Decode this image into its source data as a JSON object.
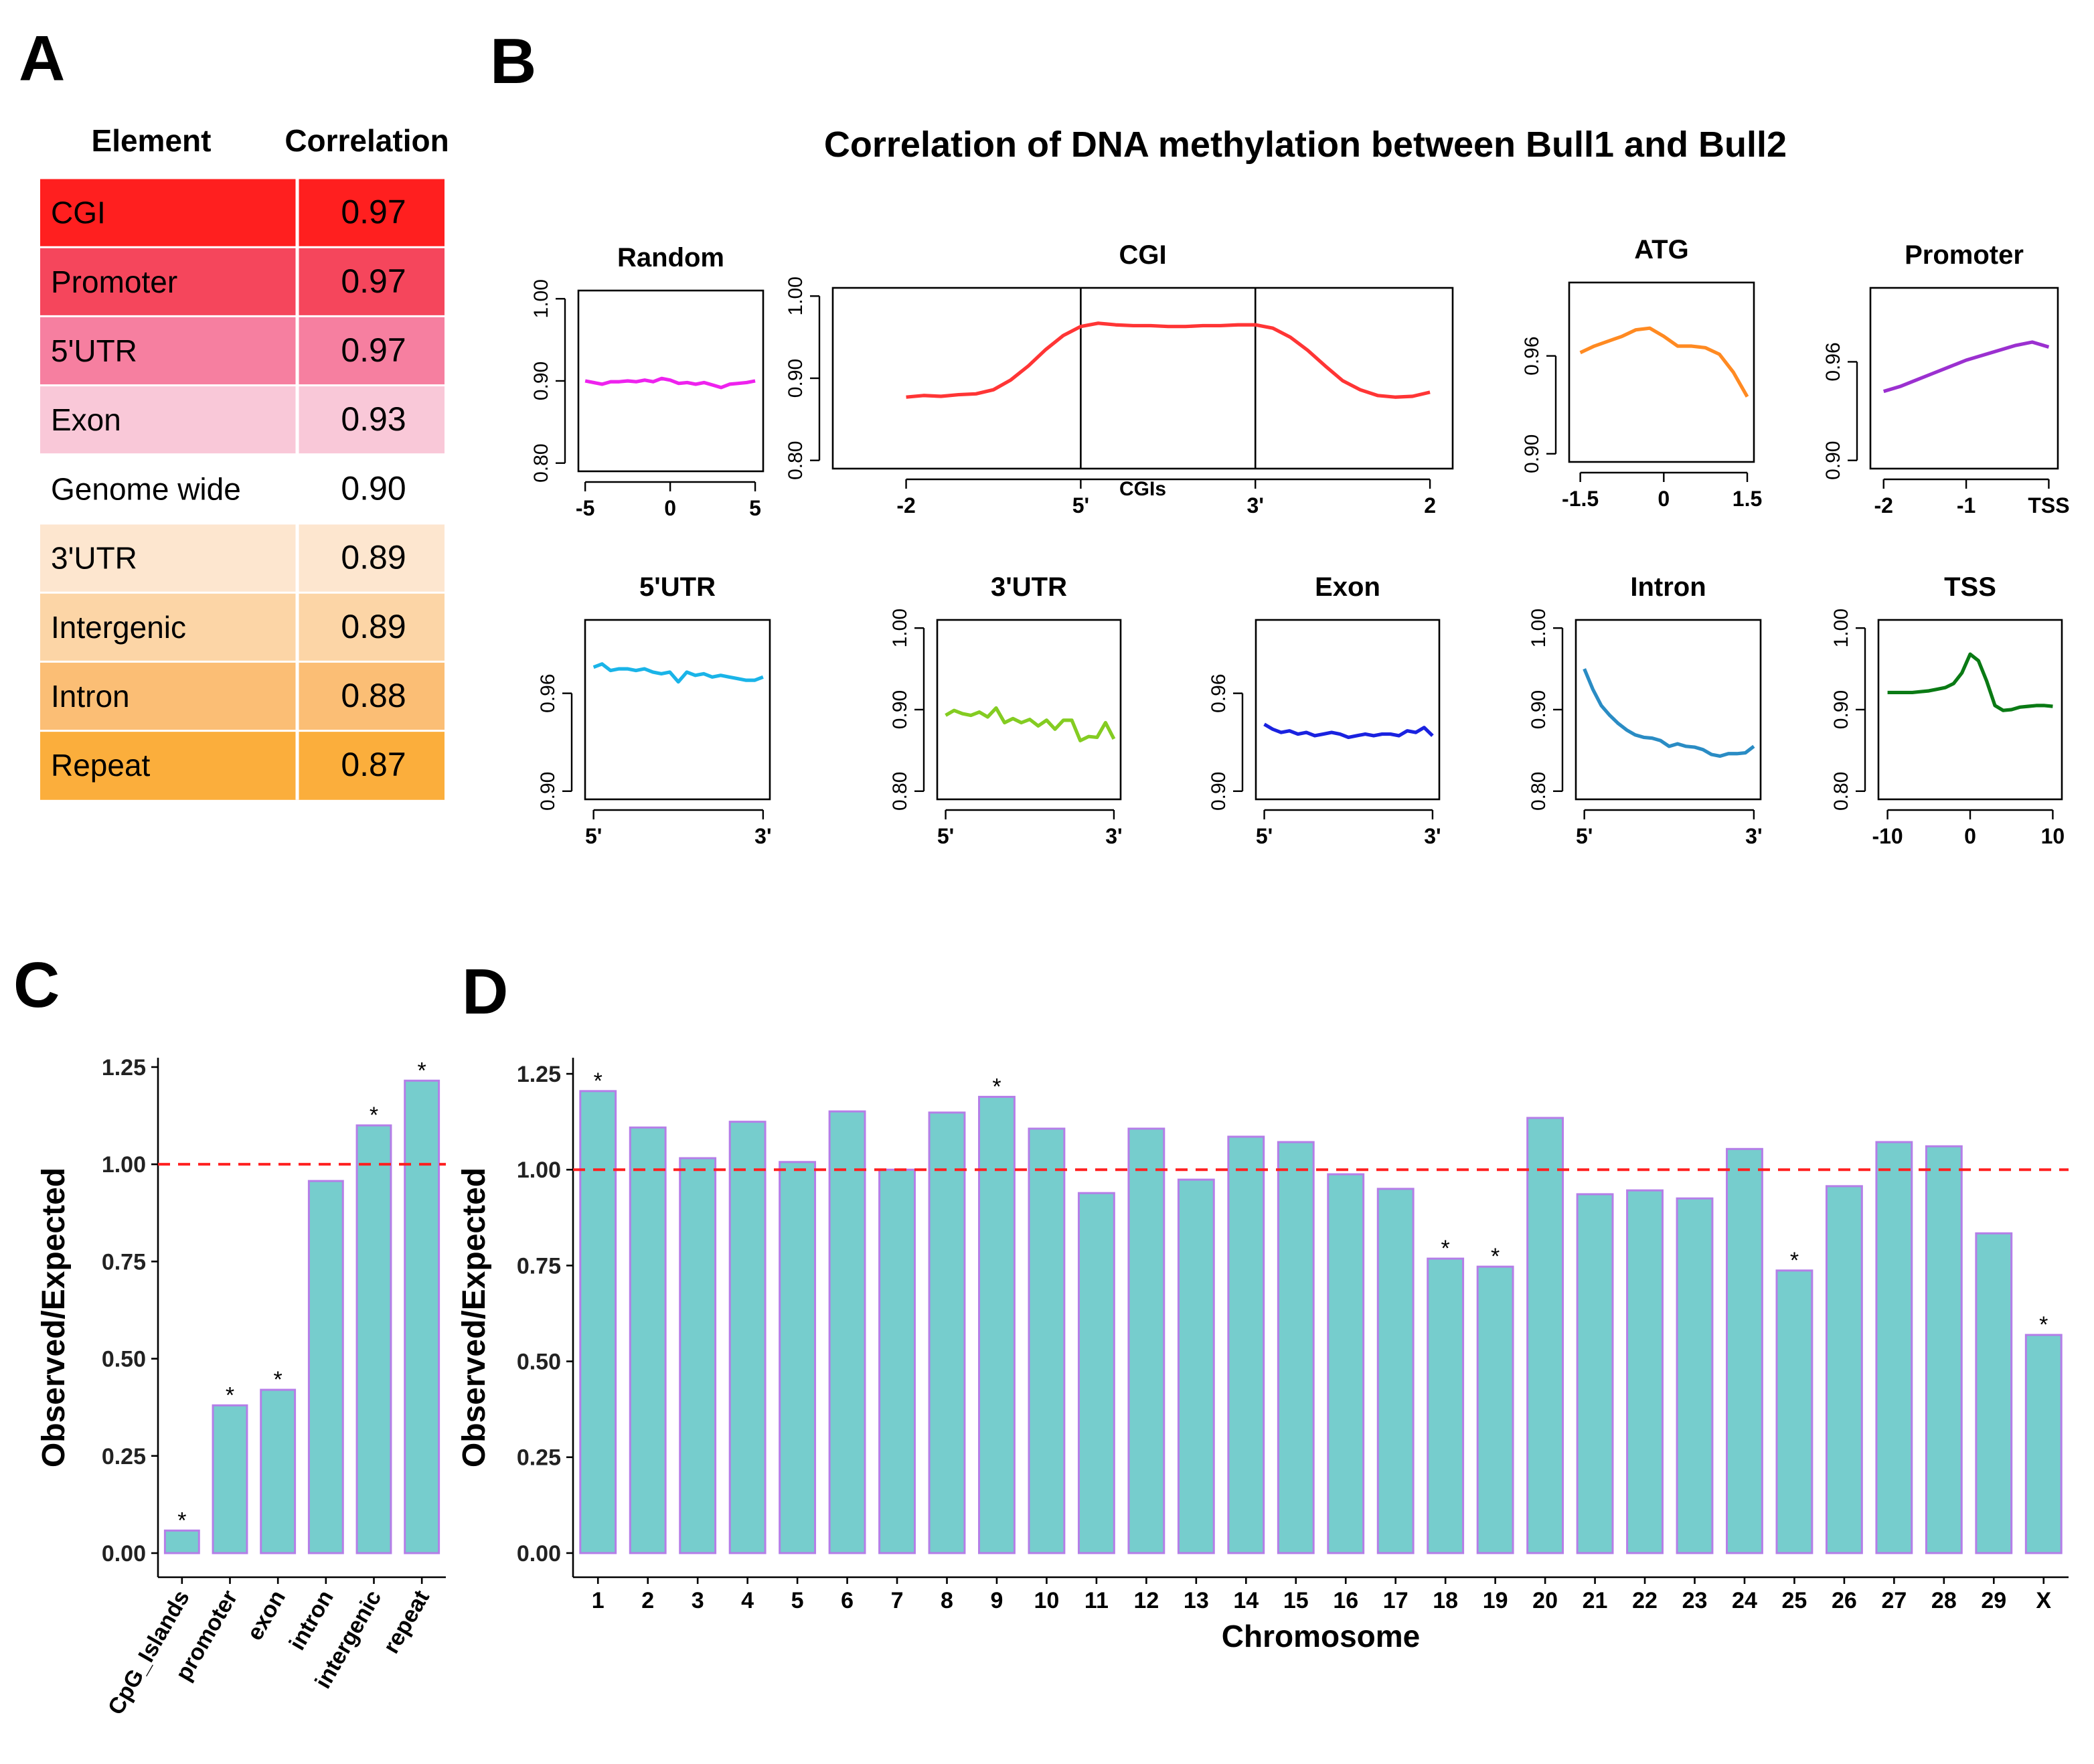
{
  "panel_labels": [
    "A",
    "B",
    "C",
    "D"
  ],
  "figure_title": "Correlation of DNA methylation between Bull1 and Bull2",
  "table": {
    "header": [
      "Element",
      "Correlation"
    ],
    "rows": [
      [
        "CGI",
        "0.97"
      ],
      [
        "Promoter",
        "0.97"
      ],
      [
        "5'UTR",
        "0.97"
      ],
      [
        "Exon",
        "0.93"
      ],
      [
        "Genome wide",
        "0.90"
      ],
      [
        "3'UTR",
        "0.89"
      ],
      [
        "Intergenic",
        "0.89"
      ],
      [
        "Intron",
        "0.88"
      ],
      [
        "Repeat",
        "0.87"
      ]
    ],
    "row_colors": [
      "#ff1f1f",
      "#f5465c",
      "#f67fa0",
      "#f9c8d8",
      "#ffffff",
      "#fde6cf",
      "#fcd5a6",
      "#fbbe75",
      "#fbae3c"
    ]
  },
  "chart_data": [
    {
      "type": "line",
      "title": "Random",
      "color": "#ee22ee",
      "x": [
        -5,
        -4.5,
        -4,
        -3.5,
        -3,
        -2.5,
        -2,
        -1.5,
        -1,
        -0.5,
        0,
        0.5,
        1,
        1.5,
        2,
        2.5,
        3,
        3.5,
        4,
        4.5,
        5
      ],
      "values": [
        0.9,
        0.898,
        0.896,
        0.899,
        0.899,
        0.9,
        0.899,
        0.901,
        0.899,
        0.903,
        0.901,
        0.897,
        0.898,
        0.896,
        0.898,
        0.895,
        0.892,
        0.896,
        0.897,
        0.898,
        0.9
      ],
      "xlim": [
        -5.4,
        5.47
      ],
      "xticks": [
        -5,
        0,
        5
      ],
      "ylim": [
        0.79,
        1.01
      ],
      "yticks": [
        {
          "value": 0.8,
          "label": "0.80"
        },
        {
          "value": 0.9,
          "label": "0.90"
        },
        {
          "value": 1,
          "label": "1.00"
        }
      ]
    },
    {
      "type": "line",
      "title": "CGI",
      "color": "#ff3535",
      "x_label": "CGIs",
      "x": [
        0,
        0.1,
        0.2,
        0.3,
        0.4,
        0.5,
        0.6,
        0.7,
        0.8,
        0.9,
        1,
        1.1,
        1.2,
        1.3,
        1.4,
        1.5,
        1.6,
        1.7,
        1.8,
        1.9,
        2,
        2.1,
        2.2,
        2.3,
        2.4,
        2.5,
        2.6,
        2.7,
        2.8,
        2.9,
        3
      ],
      "values": [
        0.877,
        0.879,
        0.878,
        0.88,
        0.881,
        0.886,
        0.898,
        0.915,
        0.935,
        0.952,
        0.963,
        0.967,
        0.965,
        0.964,
        0.964,
        0.963,
        0.963,
        0.964,
        0.964,
        0.965,
        0.965,
        0.961,
        0.95,
        0.934,
        0.915,
        0.897,
        0.886,
        0.879,
        0.877,
        0.878,
        0.883
      ],
      "xlim": [
        -0.42,
        3.13
      ],
      "xticks": [
        {
          "value": 0,
          "label": "-2"
        },
        {
          "value": 1,
          "label": "5'"
        },
        {
          "value": 2,
          "label": "3'"
        },
        {
          "value": 3,
          "label": "2"
        }
      ],
      "vlines": [
        1,
        2
      ],
      "ylim": [
        0.79,
        1.01
      ],
      "yticks": [
        {
          "value": 0.8,
          "label": "0.80"
        },
        {
          "value": 0.9,
          "label": "0.90"
        },
        {
          "value": 1,
          "label": "1.00"
        }
      ]
    },
    {
      "type": "line",
      "title": "ATG",
      "color": "#ff8a22",
      "x": [
        -1.5,
        -1.25,
        -1,
        -0.75,
        -0.5,
        -0.25,
        0,
        0.25,
        0.5,
        0.75,
        1,
        1.25,
        1.5
      ],
      "values": [
        0.962,
        0.966,
        0.969,
        0.972,
        0.976,
        0.977,
        0.972,
        0.966,
        0.966,
        0.965,
        0.961,
        0.95,
        0.935
      ],
      "xlim": [
        -1.7,
        1.62
      ],
      "xticks": [
        -1.5,
        0,
        1.5
      ],
      "ylim": [
        0.895,
        1.005
      ],
      "yticks": [
        {
          "value": 0.9,
          "label": "0.90"
        },
        0.96
      ]
    },
    {
      "type": "line",
      "title": "Promoter",
      "color": "#9b30d0",
      "x": [
        -2,
        -1.8,
        -1.6,
        -1.4,
        -1.2,
        -1,
        -0.8,
        -0.6,
        -0.4,
        -0.2,
        0
      ],
      "values": [
        0.942,
        0.945,
        0.949,
        0.953,
        0.957,
        0.961,
        0.964,
        0.967,
        0.97,
        0.972,
        0.969
      ],
      "xlim": [
        -2.16,
        0.11
      ],
      "xticks": [
        -2,
        -1,
        {
          "value": 0,
          "label": "TSS"
        }
      ],
      "ylim": [
        0.895,
        1.005
      ],
      "yticks": [
        {
          "value": 0.9,
          "label": "0.90"
        },
        0.96
      ]
    },
    {
      "type": "line",
      "title": "5'UTR",
      "color": "#1ab4e8",
      "x": [
        0,
        0.05,
        0.1,
        0.15,
        0.2,
        0.25,
        0.3,
        0.35,
        0.4,
        0.45,
        0.5,
        0.55,
        0.6,
        0.65,
        0.7,
        0.75,
        0.8,
        0.85,
        0.9,
        0.95,
        1
      ],
      "values": [
        0.976,
        0.978,
        0.974,
        0.975,
        0.975,
        0.974,
        0.975,
        0.973,
        0.972,
        0.973,
        0.967,
        0.973,
        0.971,
        0.972,
        0.97,
        0.971,
        0.97,
        0.969,
        0.968,
        0.968,
        0.97
      ],
      "xlim": [
        -0.05,
        1.04
      ],
      "xticks": [
        {
          "value": 0,
          "label": "5'"
        },
        {
          "value": 1,
          "label": "3'"
        }
      ],
      "ylim": [
        0.895,
        1.005
      ],
      "yticks": [
        {
          "value": 0.9,
          "label": "0.90"
        },
        0.96
      ]
    },
    {
      "type": "line",
      "title": "3'UTR",
      "color": "#84cc22",
      "x": [
        0,
        0.05,
        0.1,
        0.15,
        0.2,
        0.25,
        0.3,
        0.35,
        0.4,
        0.45,
        0.5,
        0.55,
        0.6,
        0.65,
        0.7,
        0.75,
        0.8,
        0.85,
        0.9,
        0.95,
        1
      ],
      "values": [
        0.893,
        0.899,
        0.895,
        0.893,
        0.897,
        0.891,
        0.902,
        0.884,
        0.889,
        0.884,
        0.888,
        0.88,
        0.887,
        0.876,
        0.887,
        0.887,
        0.862,
        0.867,
        0.866,
        0.884,
        0.864
      ],
      "xlim": [
        -0.05,
        1.04
      ],
      "xticks": [
        {
          "value": 0,
          "label": "5'"
        },
        {
          "value": 1,
          "label": "3'"
        }
      ],
      "ylim": [
        0.79,
        1.01
      ],
      "yticks": [
        {
          "value": 0.8,
          "label": "0.80"
        },
        {
          "value": 0.9,
          "label": "0.90"
        },
        {
          "value": 1,
          "label": "1.00"
        }
      ]
    },
    {
      "type": "line",
      "title": "Exon",
      "color": "#1a22e0",
      "x": [
        0,
        0.05,
        0.1,
        0.15,
        0.2,
        0.25,
        0.3,
        0.35,
        0.4,
        0.45,
        0.5,
        0.55,
        0.6,
        0.65,
        0.7,
        0.75,
        0.8,
        0.85,
        0.9,
        0.95,
        1
      ],
      "values": [
        0.941,
        0.938,
        0.936,
        0.937,
        0.935,
        0.936,
        0.934,
        0.935,
        0.936,
        0.935,
        0.933,
        0.934,
        0.935,
        0.934,
        0.935,
        0.935,
        0.934,
        0.937,
        0.936,
        0.939,
        0.934
      ],
      "xlim": [
        -0.05,
        1.04
      ],
      "xticks": [
        {
          "value": 0,
          "label": "5'"
        },
        {
          "value": 1,
          "label": "3'"
        }
      ],
      "ylim": [
        0.895,
        1.005
      ],
      "yticks": [
        {
          "value": 0.9,
          "label": "0.90"
        },
        0.96
      ]
    },
    {
      "type": "line",
      "title": "Intron",
      "color": "#2a8cc4",
      "x": [
        0,
        0.05,
        0.1,
        0.15,
        0.2,
        0.25,
        0.3,
        0.35,
        0.4,
        0.45,
        0.5,
        0.55,
        0.6,
        0.65,
        0.7,
        0.75,
        0.8,
        0.85,
        0.9,
        0.95,
        1
      ],
      "values": [
        0.95,
        0.925,
        0.905,
        0.893,
        0.883,
        0.875,
        0.869,
        0.866,
        0.865,
        0.862,
        0.855,
        0.858,
        0.855,
        0.854,
        0.851,
        0.845,
        0.843,
        0.846,
        0.846,
        0.847,
        0.855
      ],
      "xlim": [
        -0.05,
        1.04
      ],
      "xticks": [
        {
          "value": 0,
          "label": "5'"
        },
        {
          "value": 1,
          "label": "3'"
        }
      ],
      "ylim": [
        0.79,
        1.01
      ],
      "yticks": [
        {
          "value": 0.8,
          "label": "0.80"
        },
        {
          "value": 0.9,
          "label": "0.90"
        },
        {
          "value": 1,
          "label": "1.00"
        }
      ]
    },
    {
      "type": "line",
      "title": "TSS",
      "color": "#0a7a14",
      "x": [
        -10,
        -9,
        -8,
        -7,
        -6,
        -5,
        -4,
        -3,
        -2,
        -1,
        0,
        1,
        2,
        3,
        4,
        5,
        6,
        7,
        8,
        9,
        10
      ],
      "values": [
        0.921,
        0.921,
        0.921,
        0.921,
        0.922,
        0.923,
        0.925,
        0.927,
        0.932,
        0.945,
        0.968,
        0.96,
        0.935,
        0.905,
        0.899,
        0.9,
        0.903,
        0.904,
        0.905,
        0.905,
        0.904
      ],
      "xlim": [
        -11.1,
        11.1
      ],
      "xticks": [
        -10,
        0,
        10
      ],
      "ylim": [
        0.79,
        1.01
      ],
      "yticks": [
        {
          "value": 0.8,
          "label": "0.80"
        },
        {
          "value": 0.9,
          "label": "0.90"
        },
        {
          "value": 1,
          "label": "1.00"
        }
      ]
    },
    {
      "type": "bar",
      "ylabel": "Observed/Expected",
      "color": "#76cdcd",
      "edge_color": "#b57ee8",
      "categories": [
        "CpG_Islands",
        "promoter",
        "exon",
        "intron",
        "intergenic",
        "repeat"
      ],
      "values": [
        0.058,
        0.38,
        0.42,
        0.957,
        1.1,
        1.215
      ],
      "significance": [
        "*",
        "*",
        "*",
        null,
        "*",
        "*"
      ],
      "hline": 1,
      "hline_color": "#ff2020",
      "ylim": [
        -0.062,
        1.274
      ],
      "yticks": [
        {
          "value": 0,
          "label": "0.00"
        },
        0.25,
        {
          "value": 0.5,
          "label": "0.50"
        },
        0.75,
        {
          "value": 1,
          "label": "1.00"
        },
        1.25
      ]
    },
    {
      "type": "bar",
      "ylabel": "Observed/Expected",
      "xlabel": "Chromosome",
      "color": "#76cdcd",
      "edge_color": "#b57ee8",
      "categories": [
        "1",
        "2",
        "3",
        "4",
        "5",
        "6",
        "7",
        "8",
        "9",
        "10",
        "11",
        "12",
        "13",
        "14",
        "15",
        "16",
        "17",
        "18",
        "19",
        "20",
        "21",
        "22",
        "23",
        "24",
        "25",
        "26",
        "27",
        "28",
        "29",
        "X"
      ],
      "values": [
        1.205,
        1.11,
        1.03,
        1.125,
        1.02,
        1.152,
        1.0,
        1.149,
        1.19,
        1.107,
        0.939,
        1.107,
        0.974,
        1.086,
        1.072,
        0.988,
        0.95,
        0.768,
        0.747,
        1.135,
        0.936,
        0.946,
        0.925,
        1.054,
        0.737,
        0.957,
        1.072,
        1.061,
        0.834,
        0.569
      ],
      "significance": [
        "*",
        null,
        null,
        null,
        null,
        null,
        null,
        null,
        "*",
        null,
        null,
        null,
        null,
        null,
        null,
        null,
        null,
        "*",
        "*",
        null,
        null,
        null,
        null,
        null,
        "*",
        null,
        null,
        null,
        null,
        "*"
      ],
      "hline": 1,
      "hline_color": "#ff2020",
      "ylim": [
        -0.063,
        1.292
      ],
      "yticks": [
        {
          "value": 0,
          "label": "0.00"
        },
        0.25,
        {
          "value": 0.5,
          "label": "0.50"
        },
        0.75,
        {
          "value": 1,
          "label": "1.00"
        },
        1.25
      ]
    }
  ]
}
